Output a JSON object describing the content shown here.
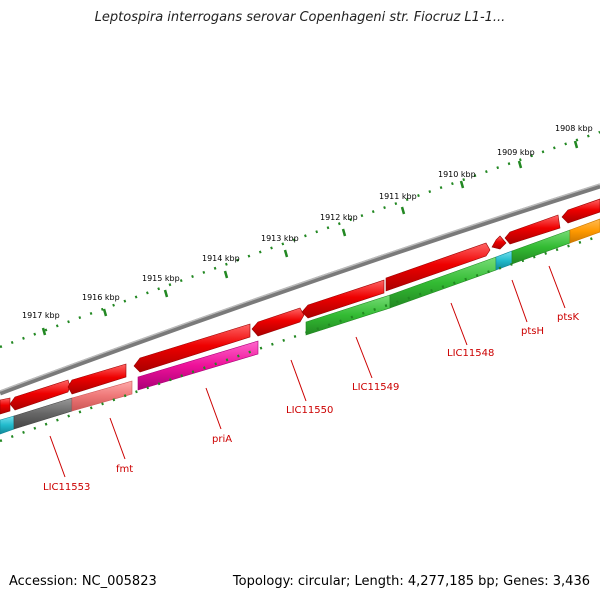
{
  "title": "Leptospira interrogans serovar Copenhageni str. Fiocruz L1-1...",
  "footer": {
    "accession": "Accession: NC_005823",
    "summary": "Topology: circular; Length: 4,277,185 bp; Genes: 3,436"
  },
  "kbp_labels": [
    "1908 kbp",
    "1909 kbp",
    "1910 kbp",
    "1911 kbp",
    "1912 kbp",
    "1913 kbp",
    "1914 kbp",
    "1915 kbp",
    "1916 kbp",
    "1917 kbp"
  ],
  "gene_labels": [
    "ptsK",
    "ptsH",
    "LIC11548",
    "LIC11549",
    "LIC11550",
    "priA",
    "fmt",
    "LIC11553"
  ],
  "colors": {
    "backbone": "#808080",
    "forward_gene": "#ee0000",
    "cog_green": "#33bb33",
    "cog_cyan": "#22bbcc",
    "cog_orange": "#ff9900",
    "cog_magenta": "#ee1199",
    "cog_gray": "#666666",
    "cog_pink": "#ee7777",
    "tick": "#228822",
    "label": "#cc0000"
  }
}
